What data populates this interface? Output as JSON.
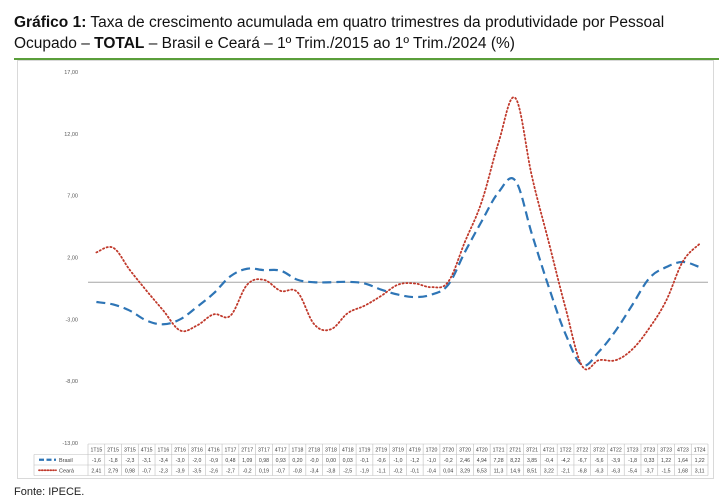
{
  "header": {
    "label": "Gráfico 1:",
    "text_part1": " Taxa de crescimento acumulada em quatro trimestres da produtividade por Pessoal Ocupado – ",
    "bold_word": "TOTAL",
    "text_part2": " – Brasil e Ceará – 1º Trim./2015 ao 1º Trim./2024 (%)"
  },
  "footer": {
    "source": "Fonte: IPECE."
  },
  "colors": {
    "brasil": "#2e75b6",
    "ceara": "#c0392b",
    "grid_border": "#bfbfbf"
  },
  "chart_data": {
    "type": "line",
    "title": "",
    "xlabel": "",
    "ylabel": "",
    "ylim": [
      -13,
      17
    ],
    "y_ticks": [
      "17,00",
      "12,00",
      "7,00",
      "2,00",
      "-3,00",
      "-8,00",
      "-13,00"
    ],
    "y_tick_values": [
      17,
      12,
      7,
      2,
      -3,
      -8,
      -13
    ],
    "zero_line": 0,
    "legend": "table-below",
    "categories": [
      "1T15",
      "2T15",
      "3T15",
      "4T15",
      "1T16",
      "2T16",
      "3T16",
      "4T16",
      "1T17",
      "2T17",
      "3T17",
      "4T17",
      "1T18",
      "2T18",
      "3T18",
      "4T18",
      "1T19",
      "2T19",
      "3T19",
      "4T19",
      "1T20",
      "2T20",
      "3T20",
      "4T20",
      "1T21",
      "2T21",
      "3T21",
      "4T21",
      "1T22",
      "2T22",
      "3T22",
      "4T22",
      "1T23",
      "2T23",
      "3T23",
      "4T23",
      "1T24"
    ],
    "series": [
      {
        "name": "Brasil",
        "style": "dashed",
        "values": [
          -1.6,
          -1.8,
          -2.3,
          -3.1,
          -3.4,
          -3.0,
          -2.0,
          -0.9,
          0.48,
          1.09,
          0.98,
          0.93,
          0.2,
          -0.0,
          0.0,
          0.03,
          -0.1,
          -0.6,
          -1.0,
          -1.2,
          -1.0,
          -0.2,
          2.46,
          4.94,
          7.28,
          8.22,
          3.85,
          -0.4,
          -4.2,
          -6.7,
          -5.6,
          -3.9,
          -1.8,
          0.33,
          1.22,
          1.64,
          1.22
        ],
        "labels": [
          "-1,6",
          "-1,8",
          "-2,3",
          "-3,1",
          "-3,4",
          "-3,0",
          "-2,0",
          "-0,9",
          "0,48",
          "1,09",
          "0,98",
          "0,93",
          "0,20",
          "-0,0",
          "0,00",
          "0,03",
          "-0,1",
          "-0,6",
          "-1,0",
          "-1,2",
          "-1,0",
          "-0,2",
          "2,46",
          "4,94",
          "7,28",
          "8,22",
          "3,85",
          "-0,4",
          "-4,2",
          "-6,7",
          "-5,6",
          "-3,9",
          "-1,8",
          "0,33",
          "1,22",
          "1,64",
          "1,22"
        ]
      },
      {
        "name": "Ceará",
        "style": "dotted",
        "values": [
          2.41,
          2.79,
          0.98,
          -0.7,
          -2.3,
          -3.9,
          -3.5,
          -2.6,
          -2.7,
          -0.2,
          0.19,
          -0.7,
          -0.8,
          -3.4,
          -3.8,
          -2.5,
          -1.9,
          -1.1,
          -0.2,
          -0.1,
          -0.4,
          0.04,
          3.29,
          6.53,
          11.3,
          14.9,
          8.51,
          3.22,
          -2.1,
          -6.8,
          -6.3,
          -6.3,
          -5.4,
          -3.7,
          -1.5,
          1.68,
          3.11
        ],
        "labels": [
          "2,41",
          "2,79",
          "0,98",
          "-0,7",
          "-2,3",
          "-3,9",
          "-3,5",
          "-2,6",
          "-2,7",
          "-0,2",
          "0,19",
          "-0,7",
          "-0,8",
          "-3,4",
          "-3,8",
          "-2,5",
          "-1,9",
          "-1,1",
          "-0,2",
          "-0,1",
          "-0,4",
          "0,04",
          "3,29",
          "6,53",
          "11,3",
          "14,9",
          "8,51",
          "3,22",
          "-2,1",
          "-6,8",
          "-6,3",
          "-6,3",
          "-5,4",
          "-3,7",
          "-1,5",
          "1,68",
          "3,11"
        ]
      }
    ]
  }
}
